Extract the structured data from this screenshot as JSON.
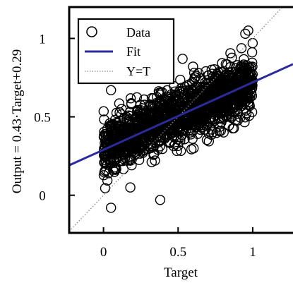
{
  "chart_data": {
    "type": "scatter",
    "xlabel": "Target",
    "ylabel": "Output = 0.43·Target+0.29",
    "xlim": [
      -0.23,
      1.27
    ],
    "ylim": [
      -0.24,
      1.2
    ],
    "xticks": [
      "0",
      "0.5",
      "1"
    ],
    "xtick_values": [
      0,
      0.5,
      1
    ],
    "yticks": [
      "0",
      "0.5",
      "1"
    ],
    "ytick_values": [
      0,
      0.5,
      1
    ],
    "grid": false,
    "legend_position": "top-left",
    "series": [
      {
        "name": "Data",
        "kind": "scatter",
        "marker": "open-circle",
        "color": "#000000",
        "x_range": [
          0,
          1
        ],
        "y_relation": "approximately 0.43*x+0.29 with spread about ±0.12",
        "outliers": [
          [
            0.05,
            -0.08
          ],
          [
            0.18,
            0.05
          ],
          [
            0.38,
            -0.03
          ],
          [
            0.05,
            0.67
          ],
          [
            0.53,
            0.87
          ],
          [
            0.6,
            0.82
          ],
          [
            0.95,
            1.03
          ],
          [
            0.97,
            1.05
          ],
          [
            1.0,
            0.97
          ]
        ]
      },
      {
        "name": "Fit",
        "kind": "line",
        "color": "#2b2b9e",
        "slope": 0.43,
        "intercept": 0.29
      },
      {
        "name": "Y=T",
        "kind": "line",
        "style": "dotted",
        "color": "#888888",
        "slope": 1,
        "intercept": 0
      }
    ]
  }
}
